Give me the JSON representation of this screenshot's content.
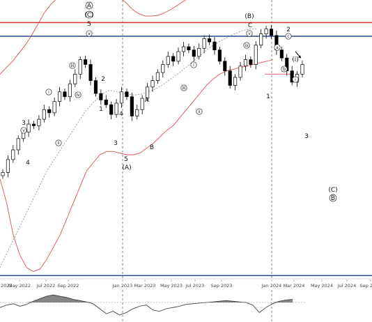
{
  "chart_data": {
    "type": "candlestick",
    "colors": {
      "up": "#ffffff",
      "down": "#000000",
      "bollinger": "#e05050",
      "ma": "#777777",
      "resistance": "#d93030",
      "support": "#2a4a8a",
      "oscillator": "#333333",
      "oscillator_fill": "#666666"
    },
    "x_ticks": [
      "May 2022",
      "Jul 2022",
      "Sep 2022",
      "Jan 2023",
      "Mar 2023",
      "May 2023",
      "Jul 2023",
      "Sep 2023",
      "Jan 2024",
      "Mar 2024",
      "May 2024",
      "Jul 2024",
      "Sep 2024"
    ],
    "x_ticks_partial_left": "2022",
    "closes": [
      -2,
      14,
      26,
      40,
      48,
      58,
      56,
      64,
      76,
      72,
      86,
      98,
      92,
      108,
      120,
      138,
      132,
      112,
      96,
      88,
      82,
      70,
      84,
      98,
      92,
      68,
      76,
      90,
      104,
      112,
      122,
      132,
      142,
      136,
      148,
      154,
      150,
      142,
      152,
      164,
      160,
      150,
      136,
      124,
      106,
      116,
      130,
      138,
      132,
      156,
      170,
      176,
      168,
      150,
      140,
      124,
      110,
      120,
      132
    ],
    "upper_band": [
      120,
      128,
      136,
      146,
      156,
      168,
      182,
      196,
      206,
      214,
      220,
      228,
      230,
      232,
      231,
      230,
      228,
      226,
      222,
      215,
      208,
      200,
      195,
      192,
      192,
      193,
      196,
      200,
      205,
      210,
      215,
      220,
      226,
      232,
      238,
      242,
      244,
      244,
      243,
      242,
      240,
      236,
      230,
      222
    ],
    "lower_band": [
      -10,
      -40,
      -80,
      -105,
      -120,
      -125,
      -122,
      -110,
      -95,
      -80,
      -60,
      -40,
      -20,
      0,
      10,
      20,
      24,
      24,
      22,
      20,
      20,
      22,
      28,
      34,
      42,
      50,
      56,
      66,
      76,
      86,
      96,
      106,
      114,
      120,
      124,
      126,
      128,
      130,
      132,
      134,
      136,
      138
    ],
    "moving_average": [
      -120,
      -100,
      -80,
      -60,
      -40,
      -20,
      0,
      15,
      30,
      45,
      60,
      75,
      85,
      95,
      100,
      98,
      96,
      94,
      95,
      98,
      102,
      108,
      115,
      122,
      130,
      138,
      146,
      154,
      160,
      165,
      170,
      174,
      176,
      176
    ],
    "levels": {
      "resistance": 184,
      "support": 167,
      "lower_support": -130
    },
    "y_range": [
      -134,
      212
    ],
    "wave_labels": [
      {
        "text": "A",
        "circled": true
      },
      {
        "text": "(C)",
        "circled": true
      },
      {
        "text": "5"
      },
      {
        "text": "v",
        "circled": true,
        "small": true
      },
      {
        "text": "3"
      },
      {
        "text": "v",
        "circled": true,
        "small": true
      },
      {
        "text": "4"
      },
      {
        "text": "iii",
        "circled": true,
        "small": true
      },
      {
        "text": "i",
        "circled": true,
        "small": true
      },
      {
        "text": "iv",
        "circled": true,
        "small": true
      },
      {
        "text": "ii",
        "circled": true,
        "small": true
      },
      {
        "text": "2"
      },
      {
        "text": "1"
      },
      {
        "text": "4"
      },
      {
        "text": "3"
      },
      {
        "text": "5"
      },
      {
        "text": "(A)"
      },
      {
        "text": "A"
      },
      {
        "text": "B"
      },
      {
        "text": "i",
        "circled": true,
        "small": true
      },
      {
        "text": "iii",
        "circled": true,
        "small": true
      },
      {
        "text": "ii",
        "circled": true,
        "small": true
      },
      {
        "text": "(B)"
      },
      {
        "text": "C"
      },
      {
        "text": "v",
        "circled": true,
        "small": true
      },
      {
        "text": "iv",
        "circled": true,
        "small": true
      },
      {
        "text": "2"
      },
      {
        "text": "c",
        "circled": true,
        "small": true
      },
      {
        "text": "a",
        "circled": true,
        "small": true
      },
      {
        "text": "b",
        "circled": true,
        "small": true
      },
      {
        "text": "(i)"
      },
      {
        "text": "i",
        "circled": true,
        "small": true
      },
      {
        "text": "1"
      },
      {
        "text": "3"
      },
      {
        "text": "(C)"
      },
      {
        "text": "B",
        "circled": true
      }
    ],
    "oscillator": [
      -8,
      -4,
      -2,
      -6,
      -3,
      2,
      6,
      10,
      12,
      10,
      8,
      5,
      3,
      1,
      -2,
      -10,
      -18,
      -14,
      -20,
      -16,
      -10,
      -6,
      -4,
      -12,
      -14,
      -10,
      -8,
      -6,
      -3,
      -2,
      -1,
      0,
      1,
      2,
      3,
      2,
      1,
      0,
      -4,
      -16,
      -8,
      -2,
      2,
      4,
      5
    ]
  }
}
